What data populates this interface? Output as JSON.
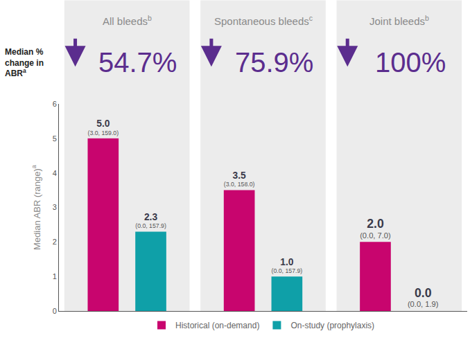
{
  "chart_data": {
    "type": "bar",
    "categories": [
      "All bleeds",
      "Spontaneous bleeds",
      "Joint bleeds"
    ],
    "category_notes": [
      "b",
      "c",
      "b"
    ],
    "series": [
      {
        "name": "Historical (on-demand)",
        "color": "#c8056e",
        "values": [
          5.0,
          3.5,
          2.0
        ],
        "value_labels": [
          "5.0",
          "3.5",
          "2.0"
        ],
        "range_labels": [
          "(3.0, 159.0)",
          "(3.0, 158.0)",
          "(0.0, 7.0)"
        ]
      },
      {
        "name": "On-study (prophylaxis)",
        "color": "#0fa0a8",
        "values": [
          2.3,
          1.0,
          0.0
        ],
        "value_labels": [
          "2.3",
          "1.0",
          "0.0"
        ],
        "range_labels": [
          "(0.0, 157.9)",
          "(0.0, 157.9)",
          "(0.0, 1.9)"
        ]
      }
    ],
    "y_label": "Median ABR (range)",
    "y_label_note": "a",
    "change_label_lines": [
      "Median %",
      "change in",
      "ABR"
    ],
    "change_label_note": "a",
    "change_values": [
      54.7,
      75.9,
      100
    ],
    "change_labels": [
      "54.7%",
      "75.9%",
      "100%"
    ],
    "change_color": "#5b2d8e",
    "ylim": [
      0,
      6
    ],
    "yticks": [
      0,
      1,
      2,
      3,
      4,
      5,
      6
    ],
    "grid": false,
    "legend": "bottom",
    "data_labels": true,
    "tick_labels": "y"
  }
}
